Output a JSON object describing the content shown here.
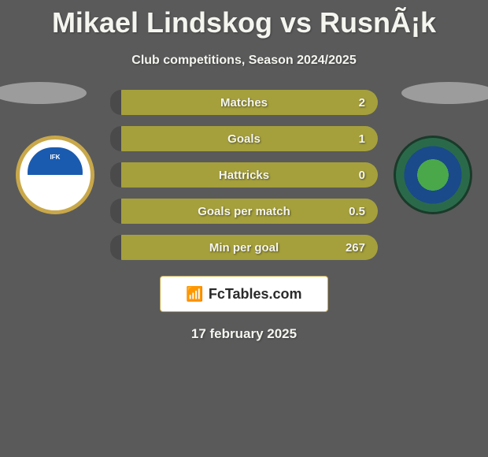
{
  "title": "Mikael Lindskog vs RusnÃ¡k",
  "subtitle": "Club competitions, Season 2024/2025",
  "date": "17 february 2025",
  "logo_text": "FcTables.com",
  "stats": [
    {
      "label": "Matches",
      "value": "2",
      "fill_pct": 4
    },
    {
      "label": "Goals",
      "value": "1",
      "fill_pct": 4
    },
    {
      "label": "Hattricks",
      "value": "0",
      "fill_pct": 4
    },
    {
      "label": "Goals per match",
      "value": "0.5",
      "fill_pct": 4
    },
    {
      "label": "Min per goal",
      "value": "267",
      "fill_pct": 4
    }
  ],
  "badge_left_label": "IFK NORRKÖPING",
  "badge_right_label": "SEATTLE SOUNDERS FC",
  "colors": {
    "background": "#5a5a5a",
    "bar_bg": "#a5a03c",
    "bar_fill": "#4a4a4a",
    "text": "#f5f5f0",
    "logo_border": "#c9a84a"
  },
  "typography": {
    "title_fontsize": 36,
    "subtitle_fontsize": 16,
    "stat_fontsize": 15,
    "date_fontsize": 17
  }
}
